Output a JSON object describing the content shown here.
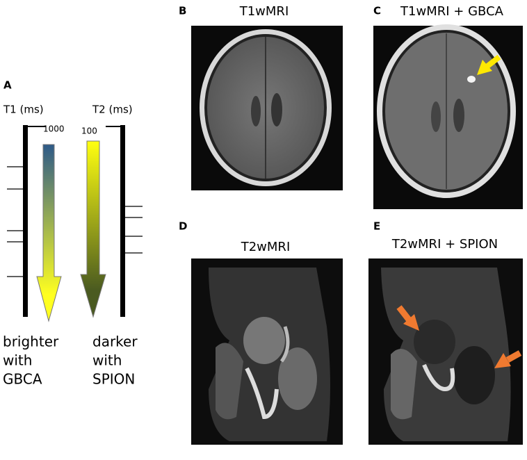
{
  "panel_a": {
    "label": "A",
    "t1_axis": "T1 (ms)",
    "t2_axis": "T2 (ms)",
    "t1_top": "1000",
    "t2_top": "100",
    "t1_caption": [
      "brighter",
      "with",
      "GBCA"
    ],
    "t2_caption": [
      "darker",
      "with",
      "SPION"
    ]
  },
  "panels": [
    {
      "label": "B",
      "title": "T1wMRI"
    },
    {
      "label": "C",
      "title": "T1wMRI  + GBCA"
    },
    {
      "label": "D",
      "title": "T2wMRI"
    },
    {
      "label": "E",
      "title": "T2wMRI + SPION"
    }
  ]
}
